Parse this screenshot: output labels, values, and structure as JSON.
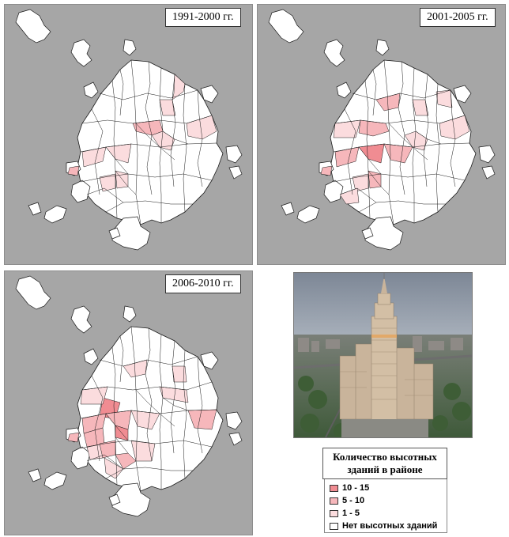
{
  "panels": [
    {
      "label": "1991-2000 гг."
    },
    {
      "label": "2001-2005 гг."
    },
    {
      "label": "2006-2010 гг."
    }
  ],
  "legend": {
    "title_line1": "Количество высотных",
    "title_line2": "зданий в районе",
    "items": [
      {
        "label": "10 - 15",
        "color": "#f08c92"
      },
      {
        "label": "5 - 10",
        "color": "#f6b7bb"
      },
      {
        "label": "1 - 5",
        "color": "#fbdcde"
      },
      {
        "label": "Нет высотных зданий",
        "color": "#ffffff"
      }
    ]
  },
  "colors": {
    "map_background": "#a6a6a6",
    "district_fill": "#ffffff",
    "district_border": "#1a1a1a"
  },
  "photo": {
    "subject": "high-rise-residential-tower-photo"
  }
}
